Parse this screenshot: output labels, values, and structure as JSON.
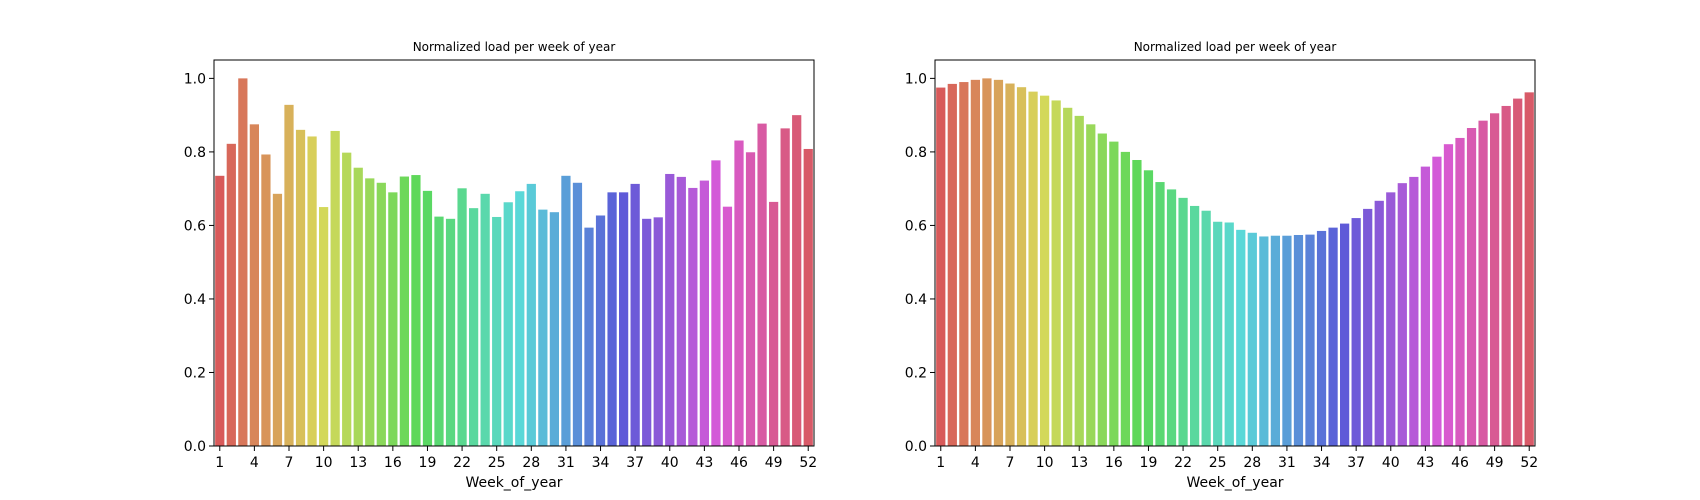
{
  "chart_data": [
    {
      "type": "bar",
      "title": "Normalized load per week of year",
      "xlabel": "Week_of_year",
      "ylabel": "",
      "ylim": [
        0,
        1.05
      ],
      "yticks": [
        0.0,
        0.2,
        0.4,
        0.6,
        0.8,
        1.0
      ],
      "ytick_labels": [
        "0.0",
        "0.2",
        "0.4",
        "0.6",
        "0.8",
        "1.0"
      ],
      "xtick_labels": [
        "1",
        "4",
        "7",
        "10",
        "13",
        "16",
        "19",
        "22",
        "25",
        "28",
        "31",
        "34",
        "37",
        "40",
        "43",
        "46",
        "49",
        "52"
      ],
      "categories": [
        "1",
        "2",
        "3",
        "4",
        "5",
        "6",
        "7",
        "8",
        "9",
        "10",
        "11",
        "12",
        "13",
        "14",
        "15",
        "16",
        "17",
        "18",
        "19",
        "20",
        "21",
        "22",
        "23",
        "24",
        "25",
        "26",
        "27",
        "28",
        "29",
        "30",
        "31",
        "32",
        "33",
        "34",
        "35",
        "36",
        "37",
        "38",
        "39",
        "40",
        "41",
        "42",
        "43",
        "44",
        "45",
        "46",
        "47",
        "48",
        "49",
        "50",
        "51",
        "52"
      ],
      "values": [
        0.735,
        0.822,
        1.0,
        0.875,
        0.793,
        0.686,
        0.928,
        0.86,
        0.842,
        0.65,
        0.857,
        0.798,
        0.757,
        0.728,
        0.716,
        0.69,
        0.733,
        0.737,
        0.694,
        0.624,
        0.618,
        0.701,
        0.647,
        0.686,
        0.623,
        0.663,
        0.693,
        0.713,
        0.643,
        0.636,
        0.735,
        0.716,
        0.594,
        0.627,
        0.69,
        0.69,
        0.713,
        0.618,
        0.622,
        0.74,
        0.732,
        0.702,
        0.722,
        0.777,
        0.651,
        0.831,
        0.799,
        0.877,
        0.664,
        0.864,
        0.9,
        0.808
      ],
      "grid": false,
      "legend": "none"
    },
    {
      "type": "bar",
      "title": "Normalized load per week of year",
      "xlabel": "Week_of_year",
      "ylabel": "",
      "ylim": [
        0,
        1.05
      ],
      "yticks": [
        0.0,
        0.2,
        0.4,
        0.6,
        0.8,
        1.0
      ],
      "ytick_labels": [
        "0.0",
        "0.2",
        "0.4",
        "0.6",
        "0.8",
        "1.0"
      ],
      "xtick_labels": [
        "1",
        "4",
        "7",
        "10",
        "13",
        "16",
        "19",
        "22",
        "25",
        "28",
        "31",
        "34",
        "37",
        "40",
        "43",
        "46",
        "49",
        "52"
      ],
      "categories": [
        "1",
        "2",
        "3",
        "4",
        "5",
        "6",
        "7",
        "8",
        "9",
        "10",
        "11",
        "12",
        "13",
        "14",
        "15",
        "16",
        "17",
        "18",
        "19",
        "20",
        "21",
        "22",
        "23",
        "24",
        "25",
        "26",
        "27",
        "28",
        "29",
        "30",
        "31",
        "32",
        "33",
        "34",
        "35",
        "36",
        "37",
        "38",
        "39",
        "40",
        "41",
        "42",
        "43",
        "44",
        "45",
        "46",
        "47",
        "48",
        "49",
        "50",
        "51",
        "52"
      ],
      "values": [
        0.975,
        0.985,
        0.99,
        0.996,
        1.0,
        0.996,
        0.986,
        0.976,
        0.964,
        0.953,
        0.94,
        0.92,
        0.898,
        0.875,
        0.85,
        0.828,
        0.8,
        0.778,
        0.75,
        0.718,
        0.698,
        0.675,
        0.653,
        0.64,
        0.61,
        0.608,
        0.588,
        0.58,
        0.57,
        0.572,
        0.572,
        0.574,
        0.575,
        0.585,
        0.594,
        0.605,
        0.62,
        0.645,
        0.667,
        0.69,
        0.715,
        0.732,
        0.76,
        0.787,
        0.821,
        0.838,
        0.865,
        0.885,
        0.905,
        0.925,
        0.945,
        0.962
      ],
      "grid": false,
      "legend": "none"
    }
  ]
}
